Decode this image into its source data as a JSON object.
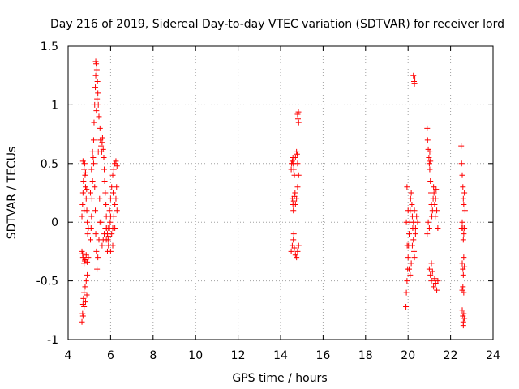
{
  "chart_data": {
    "type": "scatter",
    "title": "Day 216 of 2019, Sidereal Day-to-day VTEC variation (SDTVAR) for receiver lord",
    "xlabel": "GPS time / hours",
    "ylabel": "SDTVAR / TECUs",
    "xlim": [
      4,
      24
    ],
    "ylim": [
      -1,
      1.5
    ],
    "xticks": [
      4,
      6,
      8,
      10,
      12,
      14,
      16,
      18,
      20,
      22,
      24
    ],
    "xtick_labels": [
      "4",
      "6",
      "8",
      "10",
      "12",
      "14",
      "16",
      "18",
      "20",
      "22",
      "24"
    ],
    "yticks": [
      -1,
      -0.5,
      0,
      0.5,
      1,
      1.5
    ],
    "ytick_labels": [
      "-1",
      "-0.5",
      "0",
      "0.5",
      "1",
      "1.5"
    ],
    "grid": true,
    "marker": "+",
    "color": "#ff0000",
    "series": [
      {
        "name": "SDTVAR",
        "points": [
          [
            4.65,
            -0.85
          ],
          [
            4.68,
            -0.78
          ],
          [
            4.7,
            -0.7
          ],
          [
            4.72,
            -0.65
          ],
          [
            4.75,
            -0.6
          ],
          [
            4.8,
            -0.55
          ],
          [
            4.85,
            -0.5
          ],
          [
            4.9,
            -0.45
          ],
          [
            4.7,
            -0.8
          ],
          [
            4.75,
            -0.72
          ],
          [
            4.82,
            -0.68
          ],
          [
            4.88,
            -0.62
          ],
          [
            4.65,
            -0.25
          ],
          [
            4.7,
            -0.3
          ],
          [
            4.75,
            -0.35
          ],
          [
            4.8,
            -0.32
          ],
          [
            4.85,
            -0.28
          ],
          [
            4.9,
            -0.34
          ],
          [
            4.95,
            -0.3
          ],
          [
            4.68,
            -0.27
          ],
          [
            4.78,
            -0.33
          ],
          [
            4.65,
            0.05
          ],
          [
            4.68,
            0.15
          ],
          [
            4.7,
            0.25
          ],
          [
            4.72,
            0.35
          ],
          [
            4.75,
            0.45
          ],
          [
            4.78,
            0.5
          ],
          [
            4.8,
            0.4
          ],
          [
            4.82,
            0.3
          ],
          [
            4.85,
            0.2
          ],
          [
            4.88,
            0.1
          ],
          [
            4.9,
            0.0
          ],
          [
            4.92,
            -0.1
          ],
          [
            4.95,
            -0.05
          ],
          [
            4.7,
            0.52
          ],
          [
            4.75,
            0.1
          ],
          [
            4.82,
            0.42
          ],
          [
            4.87,
            0.28
          ],
          [
            5.05,
            -0.15
          ],
          [
            5.08,
            -0.05
          ],
          [
            5.1,
            0.05
          ],
          [
            5.12,
            0.2
          ],
          [
            5.15,
            0.35
          ],
          [
            5.18,
            0.55
          ],
          [
            5.2,
            0.7
          ],
          [
            5.22,
            0.85
          ],
          [
            5.25,
            1.0
          ],
          [
            5.28,
            1.15
          ],
          [
            5.3,
            1.25
          ],
          [
            5.32,
            1.35
          ],
          [
            5.35,
            1.3
          ],
          [
            5.38,
            1.2
          ],
          [
            5.4,
            1.1
          ],
          [
            5.42,
            1.0
          ],
          [
            5.45,
            0.9
          ],
          [
            5.3,
            1.37
          ],
          [
            5.36,
            1.05
          ],
          [
            5.33,
            0.95
          ],
          [
            5.05,
            0.25
          ],
          [
            5.1,
            0.45
          ],
          [
            5.15,
            0.6
          ],
          [
            5.2,
            0.5
          ],
          [
            5.25,
            0.3
          ],
          [
            5.28,
            0.1
          ],
          [
            5.3,
            -0.1
          ],
          [
            5.33,
            -0.25
          ],
          [
            5.36,
            -0.4
          ],
          [
            5.4,
            -0.3
          ],
          [
            5.45,
            -0.15
          ],
          [
            5.5,
            0.0
          ],
          [
            5.5,
            0.8
          ],
          [
            5.52,
            0.7
          ],
          [
            5.55,
            0.65
          ],
          [
            5.58,
            0.6
          ],
          [
            5.6,
            0.68
          ],
          [
            5.62,
            0.72
          ],
          [
            5.65,
            0.62
          ],
          [
            5.68,
            0.55
          ],
          [
            5.7,
            0.45
          ],
          [
            5.72,
            0.35
          ],
          [
            5.75,
            0.25
          ],
          [
            5.78,
            0.15
          ],
          [
            5.8,
            0.05
          ],
          [
            5.82,
            -0.05
          ],
          [
            5.85,
            -0.1
          ],
          [
            5.88,
            -0.15
          ],
          [
            5.9,
            -0.2
          ],
          [
            5.92,
            -0.12
          ],
          [
            5.95,
            -0.05
          ],
          [
            5.98,
            0.0
          ],
          [
            6.0,
            0.05
          ],
          [
            5.6,
            -0.2
          ],
          [
            5.65,
            -0.15
          ],
          [
            5.7,
            -0.1
          ],
          [
            5.75,
            -0.05
          ],
          [
            5.8,
            -0.15
          ],
          [
            5.85,
            -0.25
          ],
          [
            5.9,
            -0.05
          ],
          [
            5.95,
            0.1
          ],
          [
            6.0,
            0.2
          ],
          [
            6.05,
            0.3
          ],
          [
            6.1,
            0.4
          ],
          [
            6.15,
            0.45
          ],
          [
            6.2,
            0.5
          ],
          [
            6.25,
            0.52
          ],
          [
            6.3,
            0.48
          ],
          [
            6.05,
            -0.1
          ],
          [
            6.1,
            -0.05
          ],
          [
            6.15,
            0.05
          ],
          [
            6.2,
            0.15
          ],
          [
            6.25,
            0.2
          ],
          [
            6.3,
            0.1
          ],
          [
            6.1,
            -0.2
          ],
          [
            6.2,
            -0.05
          ],
          [
            6.0,
            -0.25
          ],
          [
            6.12,
            0.25
          ],
          [
            6.28,
            0.3
          ],
          [
            5.55,
            0.0
          ],
          [
            5.48,
            0.2
          ],
          [
            5.42,
            0.6
          ],
          [
            14.5,
            0.45
          ],
          [
            14.52,
            0.5
          ],
          [
            14.55,
            0.52
          ],
          [
            14.58,
            0.55
          ],
          [
            14.6,
            0.5
          ],
          [
            14.62,
            0.45
          ],
          [
            14.65,
            0.4
          ],
          [
            14.7,
            0.55
          ],
          [
            14.75,
            0.6
          ],
          [
            14.78,
            0.58
          ],
          [
            14.8,
            0.5
          ],
          [
            14.55,
            0.2
          ],
          [
            14.58,
            0.15
          ],
          [
            14.6,
            0.1
          ],
          [
            14.62,
            0.18
          ],
          [
            14.65,
            0.22
          ],
          [
            14.68,
            0.25
          ],
          [
            14.7,
            0.15
          ],
          [
            14.75,
            0.2
          ],
          [
            14.8,
            0.3
          ],
          [
            14.85,
            0.4
          ],
          [
            14.5,
            -0.25
          ],
          [
            14.55,
            -0.2
          ],
          [
            14.6,
            -0.15
          ],
          [
            14.65,
            -0.22
          ],
          [
            14.7,
            -0.28
          ],
          [
            14.75,
            -0.3
          ],
          [
            14.8,
            -0.25
          ],
          [
            14.85,
            -0.2
          ],
          [
            14.62,
            -0.1
          ],
          [
            14.8,
            0.92
          ],
          [
            14.82,
            0.88
          ],
          [
            14.85,
            0.85
          ],
          [
            14.84,
            0.94
          ],
          [
            19.9,
            -0.72
          ],
          [
            19.92,
            -0.6
          ],
          [
            19.95,
            -0.5
          ],
          [
            19.98,
            -0.4
          ],
          [
            20.0,
            -0.3
          ],
          [
            20.02,
            -0.2
          ],
          [
            20.05,
            -0.1
          ],
          [
            20.08,
            0.0
          ],
          [
            20.1,
            0.1
          ],
          [
            20.12,
            0.2
          ],
          [
            20.15,
            0.25
          ],
          [
            20.18,
            0.15
          ],
          [
            20.2,
            0.05
          ],
          [
            20.22,
            -0.05
          ],
          [
            20.25,
            -0.15
          ],
          [
            20.28,
            -0.25
          ],
          [
            20.3,
            -0.3
          ],
          [
            20.35,
            -0.1
          ],
          [
            20.4,
            0.05
          ],
          [
            20.45,
            0.0
          ],
          [
            19.95,
            0.3
          ],
          [
            20.0,
            0.1
          ],
          [
            20.05,
            -0.4
          ],
          [
            20.1,
            -0.45
          ],
          [
            20.15,
            -0.35
          ],
          [
            20.2,
            -0.2
          ],
          [
            20.25,
            0.0
          ],
          [
            20.3,
            0.1
          ],
          [
            20.35,
            -0.05
          ],
          [
            19.92,
            0.0
          ],
          [
            19.96,
            -0.2
          ],
          [
            20.25,
            1.25
          ],
          [
            20.28,
            1.2
          ],
          [
            20.3,
            1.18
          ],
          [
            20.32,
            1.22
          ],
          [
            20.9,
            0.8
          ],
          [
            20.92,
            0.7
          ],
          [
            20.95,
            0.62
          ],
          [
            20.98,
            0.55
          ],
          [
            21.0,
            0.5
          ],
          [
            21.02,
            0.45
          ],
          [
            21.05,
            0.35
          ],
          [
            21.08,
            0.25
          ],
          [
            21.1,
            0.15
          ],
          [
            21.12,
            0.05
          ],
          [
            21.15,
            0.1
          ],
          [
            21.18,
            0.2
          ],
          [
            21.2,
            0.3
          ],
          [
            21.22,
            0.25
          ],
          [
            21.25,
            0.15
          ],
          [
            21.28,
            0.05
          ],
          [
            21.3,
            0.2
          ],
          [
            21.32,
            0.28
          ],
          [
            21.35,
            0.1
          ],
          [
            21.4,
            -0.05
          ],
          [
            20.9,
            -0.1
          ],
          [
            20.95,
            0.0
          ],
          [
            21.0,
            -0.05
          ],
          [
            21.02,
            0.6
          ],
          [
            21.05,
            0.52
          ],
          [
            21.0,
            -0.4
          ],
          [
            21.05,
            -0.45
          ],
          [
            21.1,
            -0.5
          ],
          [
            21.15,
            -0.42
          ],
          [
            21.2,
            -0.55
          ],
          [
            21.25,
            -0.48
          ],
          [
            21.3,
            -0.52
          ],
          [
            21.35,
            -0.58
          ],
          [
            21.4,
            -0.5
          ],
          [
            21.1,
            -0.35
          ],
          [
            22.5,
            0.65
          ],
          [
            22.52,
            0.5
          ],
          [
            22.55,
            0.4
          ],
          [
            22.58,
            0.3
          ],
          [
            22.6,
            0.2
          ],
          [
            22.62,
            0.15
          ],
          [
            22.65,
            0.25
          ],
          [
            22.68,
            0.1
          ],
          [
            22.55,
            0.0
          ],
          [
            22.58,
            -0.05
          ],
          [
            22.6,
            -0.15
          ],
          [
            22.62,
            -0.1
          ],
          [
            22.65,
            -0.05
          ],
          [
            22.52,
            -0.05
          ],
          [
            22.55,
            -0.35
          ],
          [
            22.58,
            -0.4
          ],
          [
            22.6,
            -0.45
          ],
          [
            22.62,
            -0.3
          ],
          [
            22.65,
            -0.38
          ],
          [
            22.58,
            -0.55
          ],
          [
            22.62,
            -0.6
          ],
          [
            22.55,
            -0.58
          ],
          [
            22.55,
            -0.75
          ],
          [
            22.58,
            -0.8
          ],
          [
            22.6,
            -0.85
          ],
          [
            22.62,
            -0.78
          ],
          [
            22.65,
            -0.82
          ],
          [
            22.6,
            -0.88
          ]
        ]
      }
    ]
  }
}
